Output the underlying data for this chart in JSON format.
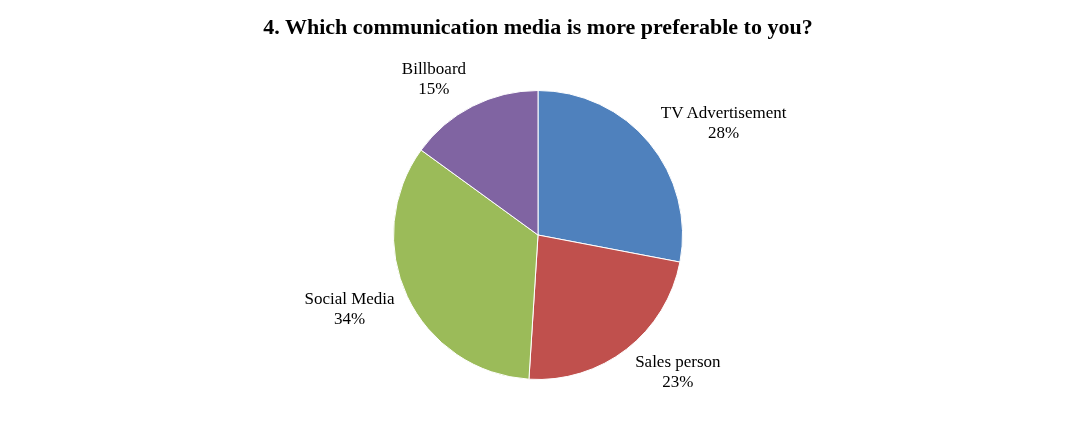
{
  "chart_data": {
    "type": "pie",
    "title": "4. Which communication media is more preferable to you?",
    "categories": [
      "TV Advertisement",
      "Sales person",
      "Social Media",
      "Billboard"
    ],
    "values": [
      28,
      23,
      34,
      15
    ],
    "colors": [
      "#4f81bd",
      "#c0504d",
      "#9bbb59",
      "#8064a2"
    ],
    "value_labels": [
      "28%",
      "23%",
      "34%",
      "15%"
    ],
    "legend": false
  }
}
